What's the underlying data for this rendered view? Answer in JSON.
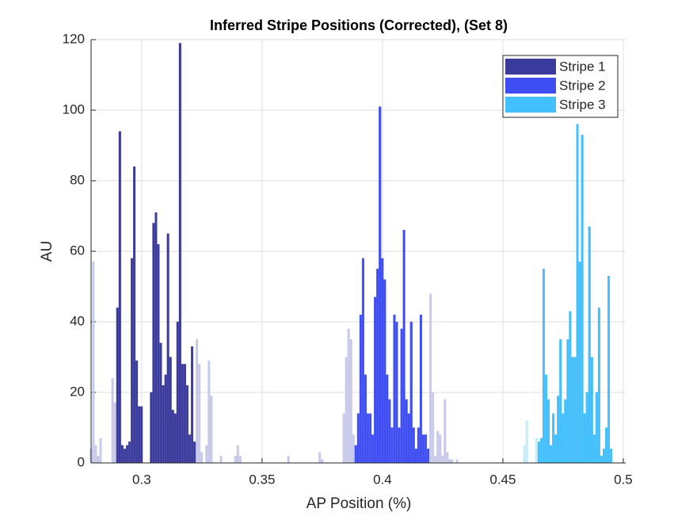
{
  "chart_data": {
    "type": "histogram",
    "title": "Inferred Stripe Positions (Corrected),  (Set 8)",
    "xlabel": "AP Position (%)",
    "ylabel": "AU",
    "xlim": [
      0.279,
      0.501
    ],
    "ylim": [
      0,
      120
    ],
    "xticks": [
      0.3,
      0.35,
      0.4,
      0.45,
      0.5
    ],
    "yticks": [
      0,
      20,
      40,
      60,
      80,
      100,
      120
    ],
    "grid": true,
    "legend": "top-right",
    "background": [
      {
        "color": "#c9c9ea",
        "x": [
          0.279,
          0.28,
          0.281,
          0.282,
          0.283,
          0.288,
          0.289,
          0.29,
          0.323,
          0.324,
          0.325,
          0.327,
          0.328,
          0.329,
          0.333,
          0.339,
          0.34,
          0.341,
          0.361,
          0.374,
          0.375,
          0.384,
          0.385,
          0.386,
          0.387,
          0.388,
          0.42,
          0.421,
          0.422,
          0.423,
          0.424,
          0.425,
          0.426,
          0.427,
          0.428,
          0.429,
          0.431
        ],
        "values": [
          4,
          57,
          5,
          2,
          7,
          24,
          17,
          14,
          35,
          28,
          3,
          5,
          29,
          19,
          2,
          2,
          5,
          2,
          2,
          3,
          1,
          14,
          30,
          38,
          35,
          8,
          48,
          20,
          2,
          9,
          8,
          2,
          18,
          3,
          1,
          1,
          1
        ]
      },
      {
        "color": "#c6ecfb",
        "x": [
          0.459,
          0.46,
          0.464
        ],
        "values": [
          5,
          12,
          7
        ]
      }
    ],
    "series": [
      {
        "name": "Stripe 1",
        "color": "#3b3b9e",
        "x": [
          0.29,
          0.291,
          0.292,
          0.293,
          0.294,
          0.295,
          0.296,
          0.297,
          0.298,
          0.299,
          0.3,
          0.301,
          0.302,
          0.303,
          0.304,
          0.305,
          0.306,
          0.307,
          0.308,
          0.309,
          0.31,
          0.311,
          0.312,
          0.313,
          0.314,
          0.315,
          0.316,
          0.317,
          0.318,
          0.319,
          0.32,
          0.321,
          0.322
        ],
        "values": [
          44,
          94,
          5,
          4,
          5,
          6,
          58,
          84,
          29,
          16,
          16,
          0,
          0,
          0,
          20,
          68,
          71,
          62,
          34,
          22,
          25,
          65,
          30,
          15,
          14,
          40,
          119,
          28,
          28,
          22,
          8,
          33,
          6
        ]
      },
      {
        "name": "Stripe 2",
        "color": "#3f4ef2",
        "x": [
          0.389,
          0.39,
          0.391,
          0.392,
          0.393,
          0.394,
          0.395,
          0.396,
          0.397,
          0.398,
          0.399,
          0.4,
          0.401,
          0.402,
          0.403,
          0.404,
          0.405,
          0.406,
          0.407,
          0.408,
          0.409,
          0.41,
          0.411,
          0.412,
          0.413,
          0.414,
          0.415,
          0.416,
          0.417,
          0.418,
          0.419
        ],
        "values": [
          5,
          14,
          42,
          58,
          25,
          14,
          14,
          8,
          47,
          55,
          101,
          58,
          52,
          25,
          18,
          10,
          42,
          40,
          10,
          38,
          66,
          18,
          14,
          40,
          10,
          4,
          10,
          42,
          8,
          8,
          4
        ]
      },
      {
        "name": "Stripe 3",
        "color": "#42bffc",
        "x": [
          0.465,
          0.466,
          0.467,
          0.468,
          0.469,
          0.47,
          0.471,
          0.472,
          0.473,
          0.474,
          0.475,
          0.476,
          0.477,
          0.478,
          0.479,
          0.48,
          0.481,
          0.482,
          0.483,
          0.484,
          0.485,
          0.486,
          0.487,
          0.488,
          0.489,
          0.49,
          0.491,
          0.492,
          0.493,
          0.494,
          0.495
        ],
        "values": [
          6,
          7,
          55,
          25,
          18,
          5,
          14,
          8,
          19,
          35,
          14,
          18,
          35,
          43,
          30,
          30,
          96,
          57,
          93,
          14,
          20,
          67,
          30,
          8,
          20,
          44,
          2,
          4,
          10,
          53,
          4
        ]
      }
    ]
  }
}
